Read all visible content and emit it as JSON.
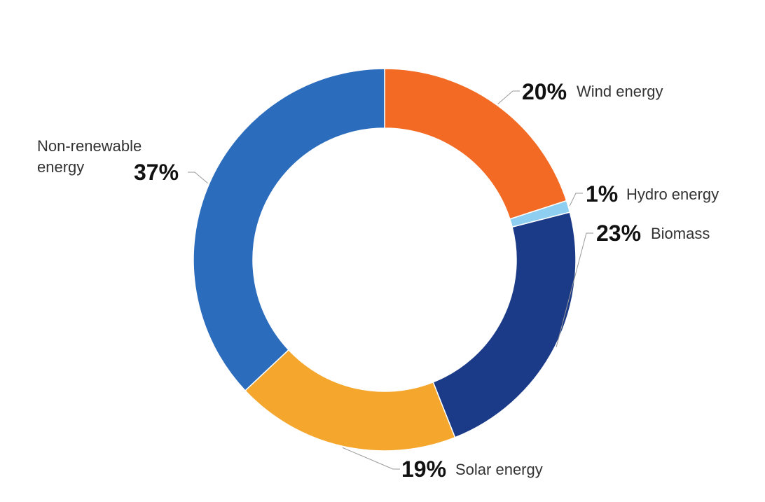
{
  "chart_data": {
    "type": "pie",
    "donut": true,
    "start": "12 o'clock, clockwise",
    "legend": "none (inline labels)",
    "slices": [
      {
        "label": "Wind energy",
        "value": 20,
        "value_label": "20%",
        "color": "#F26A23"
      },
      {
        "label": "Hydro energy",
        "value": 1,
        "value_label": "1%",
        "color": "#8ECFF1"
      },
      {
        "label": "Biomass",
        "value": 23,
        "value_label": "23%",
        "color": "#1B3A87"
      },
      {
        "label": "Solar energy",
        "value": 19,
        "value_label": "19%",
        "color": "#F5A72D"
      },
      {
        "label": "Non-renewable energy",
        "label_lines": [
          "Non-renewable",
          "energy"
        ],
        "value": 37,
        "value_label": "37%",
        "color": "#2C6CBC"
      }
    ]
  }
}
